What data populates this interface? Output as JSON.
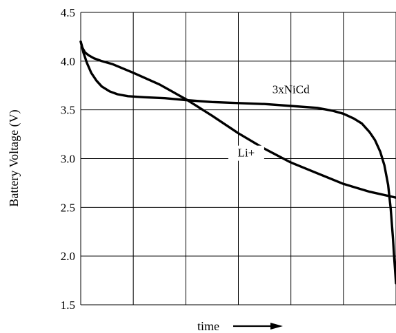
{
  "chart_data": {
    "type": "line",
    "title": "",
    "xlabel": "time",
    "ylabel": "Battery Voltage (V)",
    "xlim": [
      0,
      6
    ],
    "ylim": [
      1.5,
      4.5
    ],
    "grid": true,
    "yticks": [
      "1.5",
      "2.0",
      "2.5",
      "3.0",
      "3.5",
      "4.0",
      "4.5"
    ],
    "series": [
      {
        "name": "3xNiCd",
        "label_text": "3xNiCd",
        "x": [
          0,
          0.05,
          0.12,
          0.2,
          0.3,
          0.4,
          0.55,
          0.7,
          0.9,
          1.2,
          1.6,
          2.0,
          2.5,
          3.0,
          3.5,
          4.0,
          4.5,
          4.8,
          5.0,
          5.2,
          5.35,
          5.5,
          5.6,
          5.7,
          5.78,
          5.85,
          5.9,
          5.94,
          5.97,
          6.0
        ],
        "values": [
          4.2,
          4.09,
          3.98,
          3.88,
          3.8,
          3.74,
          3.69,
          3.66,
          3.64,
          3.63,
          3.62,
          3.6,
          3.58,
          3.57,
          3.56,
          3.54,
          3.52,
          3.49,
          3.46,
          3.41,
          3.36,
          3.27,
          3.19,
          3.07,
          2.93,
          2.73,
          2.48,
          2.2,
          1.95,
          1.72
        ]
      },
      {
        "name": "Li+",
        "label_text": "Li+",
        "x": [
          0,
          0.03,
          0.08,
          0.15,
          0.25,
          0.4,
          0.6,
          1.0,
          1.5,
          2.0,
          2.5,
          3.0,
          3.5,
          4.0,
          4.5,
          5.0,
          5.5,
          6.0
        ],
        "values": [
          4.2,
          4.14,
          4.09,
          4.06,
          4.03,
          4.0,
          3.97,
          3.88,
          3.76,
          3.61,
          3.44,
          3.26,
          3.1,
          2.96,
          2.85,
          2.74,
          2.66,
          2.6
        ]
      }
    ]
  }
}
